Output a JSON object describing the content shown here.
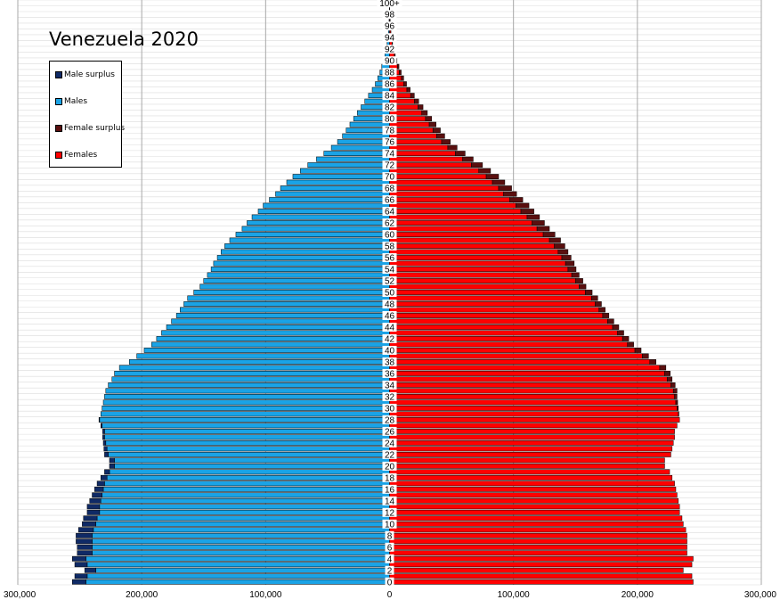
{
  "chart_data": {
    "type": "bar",
    "orientation": "horizontal",
    "title": "Venezuela 2020",
    "xlim": [
      -300000,
      300000
    ],
    "x_ticks": [
      {
        "value": -300000,
        "label": "300,000"
      },
      {
        "value": -200000,
        "label": "200,000"
      },
      {
        "value": -100000,
        "label": "100,000"
      },
      {
        "value": 0,
        "label": "0"
      },
      {
        "value": 100000,
        "label": "100,000"
      },
      {
        "value": 200000,
        "label": "200,000"
      },
      {
        "value": 300000,
        "label": "300,000"
      }
    ],
    "categories": [
      "0",
      "1",
      "2",
      "3",
      "4",
      "5",
      "6",
      "7",
      "8",
      "9",
      "10",
      "11",
      "12",
      "13",
      "14",
      "15",
      "16",
      "17",
      "18",
      "19",
      "20",
      "21",
      "22",
      "23",
      "24",
      "25",
      "26",
      "27",
      "28",
      "29",
      "30",
      "31",
      "32",
      "33",
      "34",
      "35",
      "36",
      "37",
      "38",
      "39",
      "40",
      "41",
      "42",
      "43",
      "44",
      "45",
      "46",
      "47",
      "48",
      "49",
      "50",
      "51",
      "52",
      "53",
      "54",
      "55",
      "56",
      "57",
      "58",
      "59",
      "60",
      "61",
      "62",
      "63",
      "64",
      "65",
      "66",
      "67",
      "68",
      "69",
      "70",
      "71",
      "72",
      "73",
      "74",
      "75",
      "76",
      "77",
      "78",
      "79",
      "80",
      "81",
      "82",
      "83",
      "84",
      "85",
      "86",
      "87",
      "88",
      "89",
      "90",
      "91",
      "92",
      "93",
      "94",
      "95",
      "96",
      "97",
      "98",
      "99",
      "100+"
    ],
    "age_labels": [
      "0",
      "2",
      "4",
      "6",
      "8",
      "10",
      "12",
      "14",
      "16",
      "18",
      "20",
      "22",
      "24",
      "26",
      "28",
      "30",
      "32",
      "34",
      "36",
      "38",
      "40",
      "42",
      "44",
      "46",
      "48",
      "50",
      "52",
      "54",
      "56",
      "58",
      "60",
      "62",
      "64",
      "66",
      "68",
      "70",
      "72",
      "74",
      "76",
      "78",
      "80",
      "82",
      "84",
      "86",
      "88",
      "90",
      "92",
      "94",
      "96",
      "98",
      "100+"
    ],
    "series": [
      {
        "name": "Males",
        "color": "#1aa3e6",
        "values": [
          245000,
          244000,
          237000,
          244000,
          245000,
          240000,
          240000,
          240000,
          240000,
          239000,
          237000,
          236000,
          234000,
          234000,
          233000,
          232000,
          231000,
          230000,
          228000,
          226000,
          222000,
          222000,
          227000,
          228000,
          229000,
          230000,
          230000,
          232000,
          234000,
          233000,
          232000,
          231000,
          230000,
          229000,
          227000,
          224000,
          222000,
          218000,
          210000,
          204000,
          198000,
          192000,
          188000,
          184000,
          180000,
          176000,
          172000,
          169000,
          166000,
          163000,
          158000,
          153000,
          150000,
          147000,
          144000,
          142000,
          139000,
          136000,
          133000,
          129000,
          124000,
          119000,
          115000,
          111000,
          106000,
          102000,
          97000,
          92000,
          88000,
          83000,
          78000,
          72000,
          66000,
          59000,
          53000,
          47000,
          42000,
          38000,
          35000,
          32000,
          29000,
          26000,
          23000,
          20000,
          17000,
          14000,
          11500,
          9500,
          7800,
          6300,
          5000,
          3800,
          2800,
          2000,
          1400,
          900,
          600,
          400,
          250,
          150,
          100
        ]
      },
      {
        "name": "Male surplus",
        "color": "#0f2a66",
        "values": [
          11000,
          10000,
          9000,
          10000,
          11000,
          12000,
          12000,
          13000,
          13000,
          12000,
          11000,
          11000,
          10000,
          10000,
          9000,
          8000,
          7000,
          6000,
          5000,
          4000,
          4000,
          4000,
          3000,
          2500,
          2000,
          1500,
          1500,
          1000,
          500,
          0,
          0,
          0,
          0,
          0,
          0,
          0,
          0,
          0,
          0,
          0,
          0,
          0,
          0,
          0,
          0,
          0,
          0,
          0,
          0,
          0,
          0,
          0,
          0,
          0,
          0,
          0,
          0,
          0,
          0,
          0,
          0,
          0,
          0,
          0,
          0,
          0,
          0,
          0,
          0,
          0,
          0,
          0,
          0,
          0,
          0,
          0,
          0,
          0,
          0,
          0,
          0,
          0,
          0,
          0,
          0,
          0,
          0,
          0,
          0,
          0,
          0,
          0,
          0,
          0,
          0,
          0,
          0,
          0,
          0,
          0,
          0
        ]
      },
      {
        "name": "Females",
        "color": "#ff0000",
        "values": [
          245000,
          244000,
          237000,
          244000,
          245000,
          240000,
          240000,
          240000,
          240000,
          239000,
          237000,
          236000,
          234000,
          234000,
          233000,
          232000,
          231000,
          230000,
          228000,
          226000,
          222000,
          222000,
          227000,
          228000,
          229000,
          230000,
          230000,
          232000,
          234000,
          233000,
          232000,
          231000,
          230000,
          229000,
          227000,
          224000,
          222000,
          218000,
          210000,
          204000,
          198000,
          192000,
          188000,
          184000,
          180000,
          176000,
          172000,
          169000,
          166000,
          163000,
          158000,
          153000,
          150000,
          147000,
          144000,
          142000,
          139000,
          136000,
          133000,
          129000,
          124000,
          119000,
          115000,
          111000,
          106000,
          102000,
          97000,
          92000,
          88000,
          83000,
          78000,
          72000,
          66000,
          59000,
          53000,
          47000,
          42000,
          38000,
          35000,
          32000,
          29000,
          26000,
          23000,
          20000,
          17000,
          14000,
          11500,
          9500,
          7800,
          6300,
          5000,
          3800,
          2800,
          2000,
          1400,
          900,
          600,
          400,
          250,
          150,
          100
        ]
      },
      {
        "name": "Female surplus",
        "color": "#5a0f0f",
        "values": [
          0,
          0,
          0,
          0,
          0,
          0,
          0,
          0,
          0,
          0,
          0,
          0,
          0,
          0,
          0,
          0,
          0,
          0,
          0,
          0,
          0,
          0,
          0,
          0,
          0,
          0,
          0,
          0,
          0,
          500,
          1000,
          1500,
          2000,
          3000,
          3500,
          4000,
          4500,
          5000,
          5000,
          5000,
          5000,
          5000,
          5000,
          5000,
          5000,
          5000,
          5000,
          5000,
          5000,
          5000,
          5500,
          5500,
          6000,
          6000,
          6500,
          7000,
          7500,
          8000,
          8500,
          9000,
          9500,
          10000,
          10000,
          10000,
          10500,
          10500,
          10500,
          10500,
          10500,
          10000,
          10000,
          9500,
          9000,
          8500,
          8000,
          7500,
          7000,
          6500,
          6000,
          5500,
          5000,
          4500,
          4000,
          3500,
          3000,
          2600,
          2200,
          1900,
          1600,
          1300,
          1000,
          800,
          600,
          450,
          330,
          230,
          160,
          100,
          60,
          40,
          20
        ]
      }
    ],
    "legend": [
      {
        "label": "Male surplus",
        "color": "#0f2a66"
      },
      {
        "label": "Males",
        "color": "#1aa3e6"
      },
      {
        "label": "Female surplus",
        "color": "#5a0f0f"
      },
      {
        "label": "Females",
        "color": "#ff0000"
      }
    ],
    "legend_position": "top-left",
    "grid": true
  }
}
